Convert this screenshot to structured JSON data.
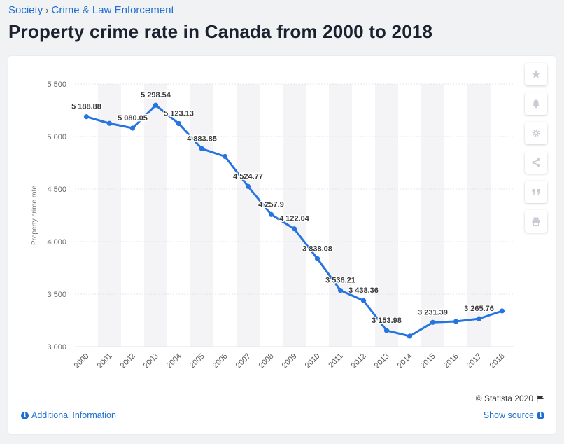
{
  "breadcrumb": {
    "items": [
      "Society",
      "Crime & Law Enforcement"
    ],
    "separator": "›"
  },
  "page_title": "Property crime rate in Canada from 2000 to 2018",
  "toolbar": {
    "icons": [
      "star-icon",
      "bell-icon",
      "gear-icon",
      "share-icon",
      "quote-icon",
      "print-icon"
    ]
  },
  "footer": {
    "copyright": "© Statista 2020",
    "additional_info": "Additional Information",
    "show_source": "Show source"
  },
  "colors": {
    "line": "#2574e0",
    "link": "#1e6fd0",
    "stripe": "#f4f4f6"
  },
  "chart_data": {
    "type": "line",
    "title": "",
    "xlabel": "",
    "ylabel": "Property crime rate",
    "categories": [
      "2000",
      "2001",
      "2002",
      "2003",
      "2004",
      "2005",
      "2006",
      "2007",
      "2008",
      "2009",
      "2010",
      "2011",
      "2012",
      "2013",
      "2014",
      "2015",
      "2016",
      "2017",
      "2018"
    ],
    "series": [
      {
        "values": [
          5188.88,
          5125,
          5080.05,
          5298.54,
          5123.13,
          4883.85,
          4810,
          4524.77,
          4257.9,
          4122.04,
          3838.08,
          3536.21,
          3438.36,
          3153.98,
          3100,
          3231.39,
          3240,
          3265.76,
          3340
        ]
      }
    ],
    "data_labels": [
      {
        "index": 0,
        "text": "5 188.88"
      },
      {
        "index": 2,
        "text": "5 080.05"
      },
      {
        "index": 3,
        "text": "5 298.54"
      },
      {
        "index": 4,
        "text": "5 123.13"
      },
      {
        "index": 5,
        "text": "4 883.85"
      },
      {
        "index": 7,
        "text": "4 524.77"
      },
      {
        "index": 8,
        "text": "4 257.9"
      },
      {
        "index": 9,
        "text": "4 122.04"
      },
      {
        "index": 10,
        "text": "3 838.08"
      },
      {
        "index": 11,
        "text": "3 536.21"
      },
      {
        "index": 12,
        "text": "3 438.36"
      },
      {
        "index": 13,
        "text": "3 153.98"
      },
      {
        "index": 15,
        "text": "3 231.39"
      },
      {
        "index": 17,
        "text": "3 265.76"
      }
    ],
    "yticks": [
      {
        "value": 3000,
        "label": "3 000"
      },
      {
        "value": 3500,
        "label": "3 500"
      },
      {
        "value": 4000,
        "label": "4 000"
      },
      {
        "value": 4500,
        "label": "4 500"
      },
      {
        "value": 5000,
        "label": "5 000"
      },
      {
        "value": 5500,
        "label": "5 500"
      }
    ],
    "ylim": [
      3000,
      5500
    ],
    "grid": true,
    "legend": "none"
  }
}
